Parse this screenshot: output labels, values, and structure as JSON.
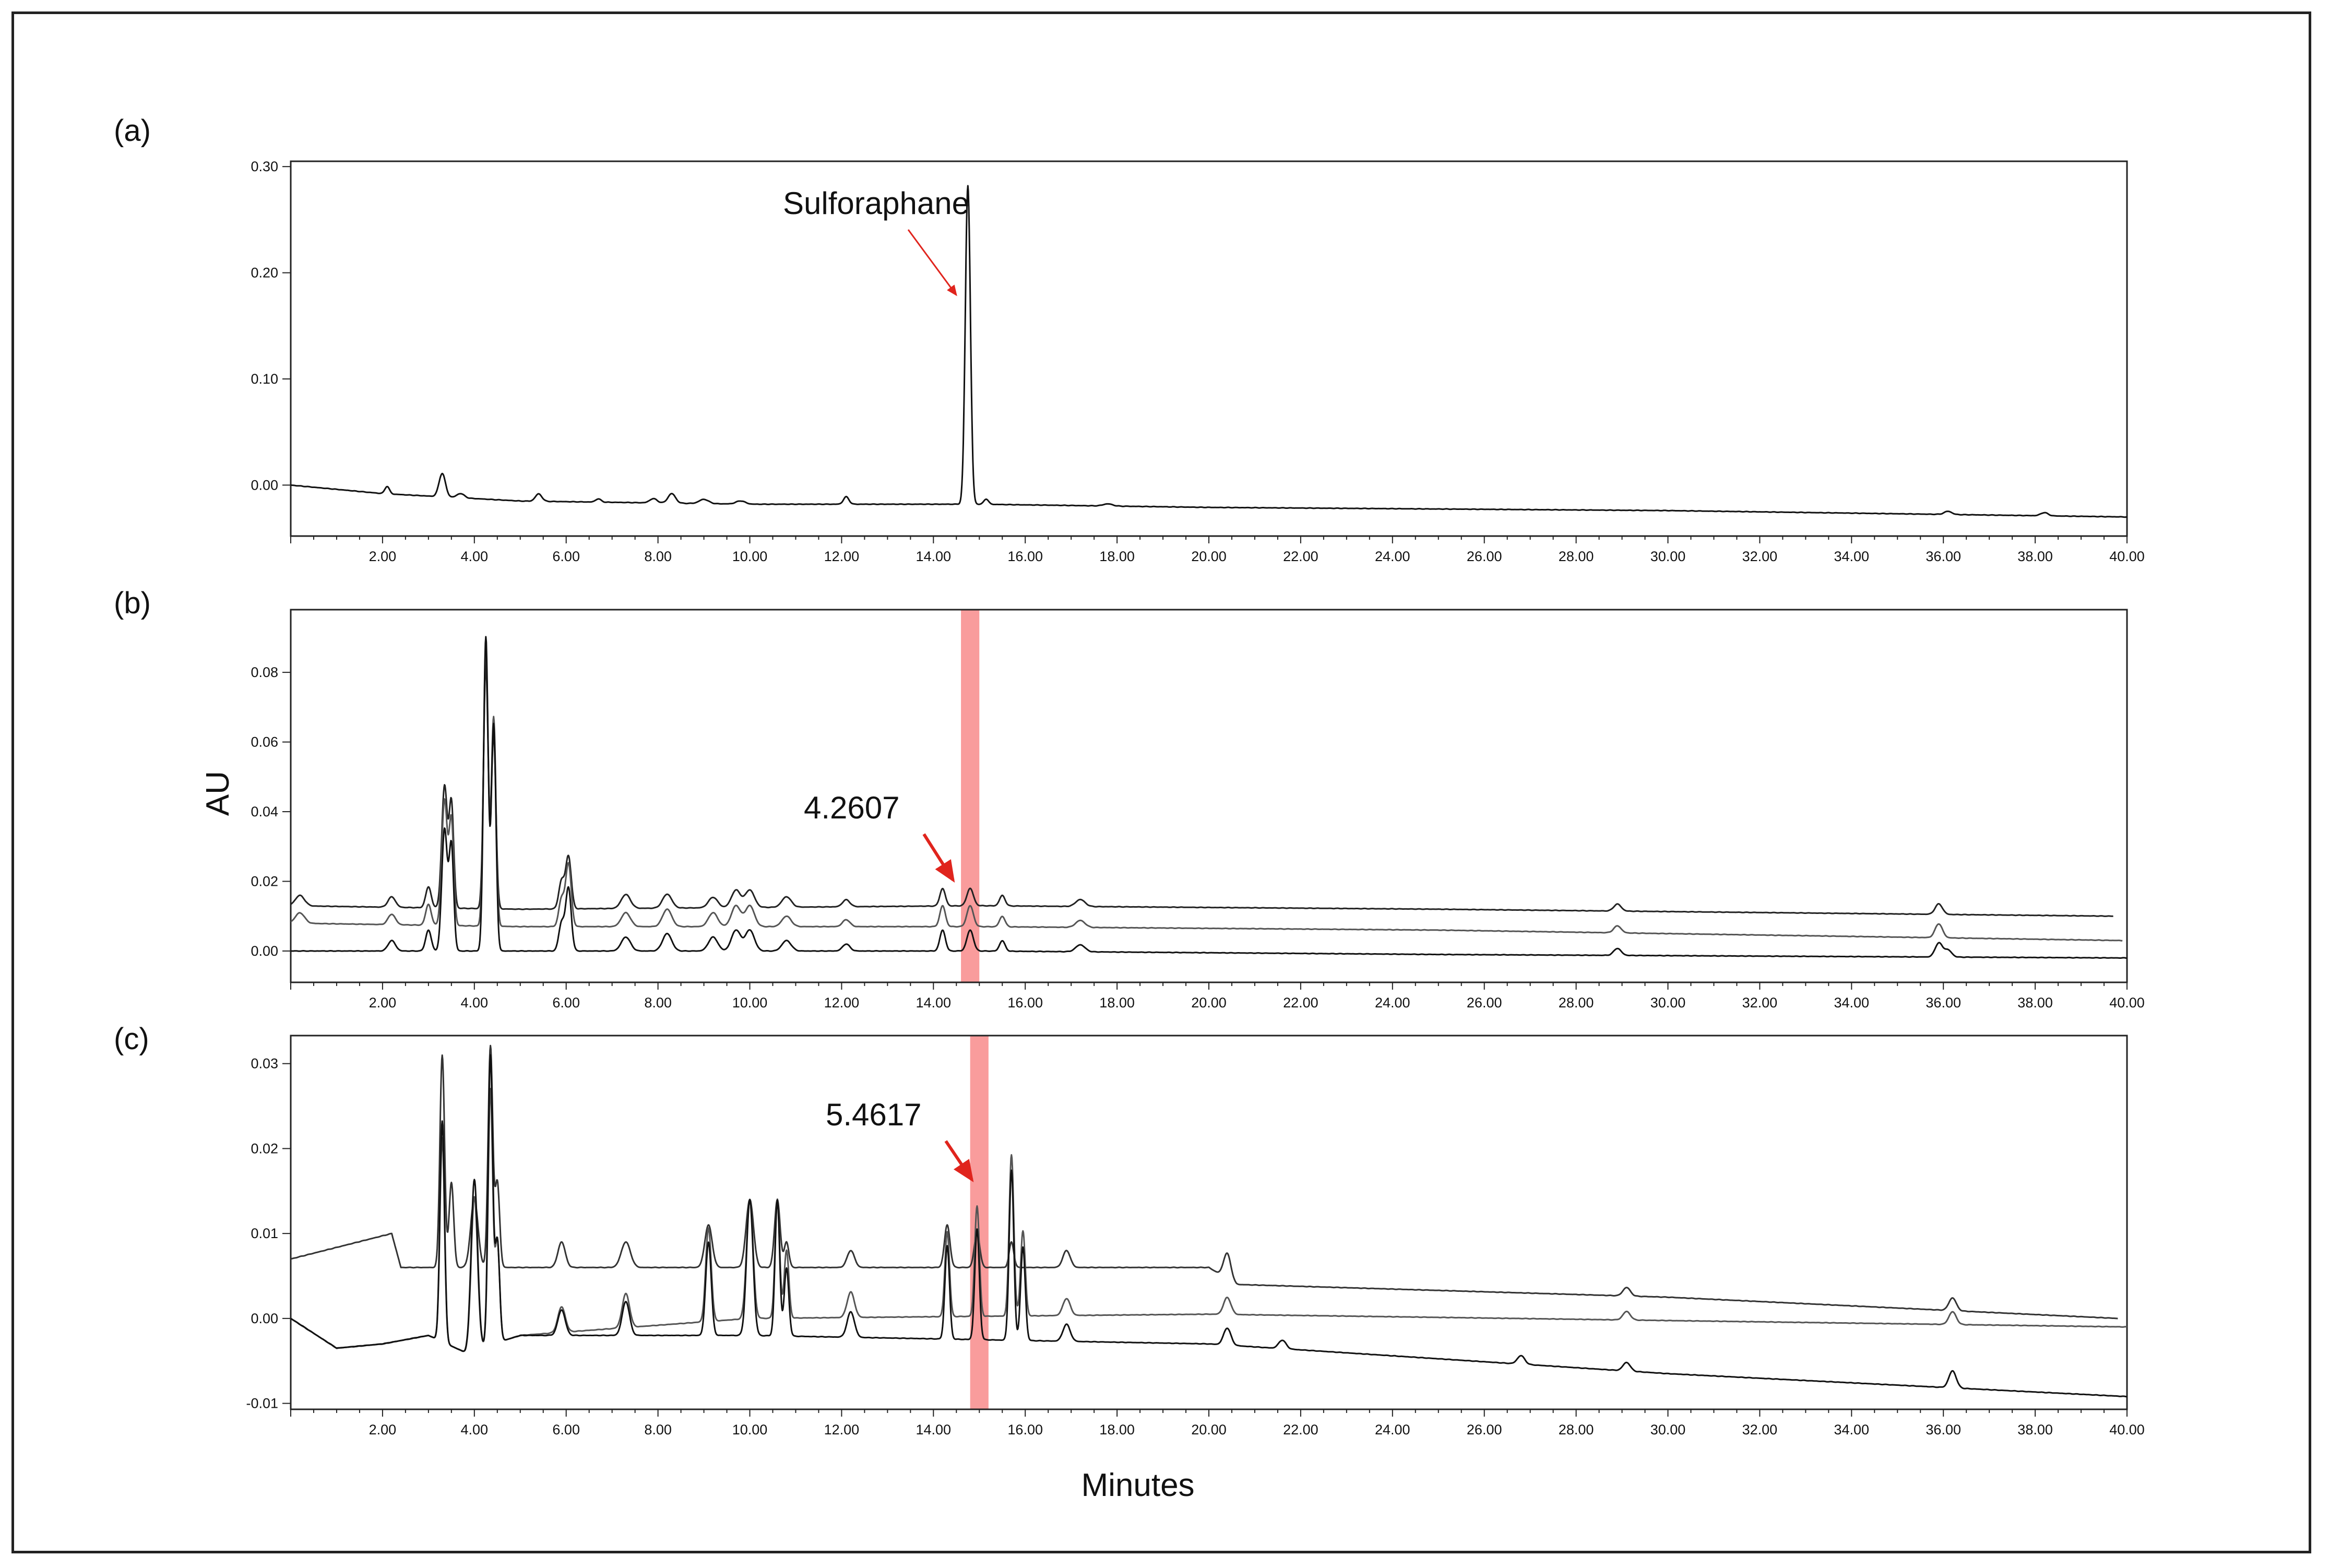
{
  "chart_data": [
    {
      "panel": "(a)",
      "type": "line",
      "xlim": [
        0,
        40
      ],
      "ylim": [
        -0.048,
        0.305
      ],
      "x_ticks": [
        "2.00",
        "4.00",
        "6.00",
        "8.00",
        "10.00",
        "12.00",
        "14.00",
        "16.00",
        "18.00",
        "20.00",
        "22.00",
        "24.00",
        "26.00",
        "28.00",
        "30.00",
        "32.00",
        "34.00",
        "36.00",
        "38.00",
        "40.00"
      ],
      "y_ticks": [
        0.0,
        0.1,
        0.2,
        0.3
      ],
      "y_tick_labels": [
        "0.00",
        "0.10",
        "0.20",
        "0.30"
      ],
      "annotation": {
        "text": "Sulforaphane",
        "x": 14.75,
        "y": 0.19
      },
      "highlight": null,
      "series": [
        {
          "baseline": [
            [
              0,
              0.0
            ],
            [
              2,
              -0.008
            ],
            [
              5,
              -0.015
            ],
            [
              10,
              -0.018
            ],
            [
              15,
              -0.018
            ],
            [
              20,
              -0.021
            ],
            [
              30,
              -0.024
            ],
            [
              40,
              -0.03
            ]
          ],
          "peaks": [
            [
              2.1,
              0.007,
              0.05
            ],
            [
              3.3,
              0.022,
              0.07
            ],
            [
              3.7,
              0.004,
              0.08
            ],
            [
              5.4,
              0.007,
              0.07
            ],
            [
              6.7,
              0.003,
              0.06
            ],
            [
              7.9,
              0.004,
              0.08
            ],
            [
              8.3,
              0.009,
              0.08
            ],
            [
              9.0,
              0.004,
              0.1
            ],
            [
              9.8,
              0.003,
              0.1
            ],
            [
              12.1,
              0.007,
              0.06
            ],
            [
              14.75,
              0.3,
              0.055
            ],
            [
              15.15,
              0.005,
              0.05
            ],
            [
              17.8,
              0.002,
              0.1
            ],
            [
              36.1,
              0.003,
              0.08
            ],
            [
              38.2,
              0.003,
              0.08
            ]
          ],
          "color": "#111111"
        }
      ]
    },
    {
      "panel": "(b)",
      "type": "line",
      "xlim": [
        0,
        40
      ],
      "ylim": [
        -0.009,
        0.098
      ],
      "x_ticks": [
        "2.00",
        "4.00",
        "6.00",
        "8.00",
        "10.00",
        "12.00",
        "14.00",
        "16.00",
        "18.00",
        "20.00",
        "22.00",
        "24.00",
        "26.00",
        "28.00",
        "30.00",
        "32.00",
        "34.00",
        "36.00",
        "38.00",
        "40.00"
      ],
      "y_ticks": [
        0.0,
        0.02,
        0.04,
        0.06,
        0.08
      ],
      "y_tick_labels": [
        "0.00",
        "0.02",
        "0.04",
        "0.06",
        "0.08"
      ],
      "ylabel": "AU",
      "annotation": {
        "text": "4.2607",
        "x": 14.9,
        "y": 0.018
      },
      "highlight": [
        14.6,
        15.0
      ],
      "series": [
        {
          "baseline": [
            [
              0,
              0.013
            ],
            [
              5,
              0.012
            ],
            [
              15,
              0.013
            ],
            [
              25,
              0.012
            ],
            [
              39.7,
              0.01
            ]
          ],
          "peaks": [
            [
              0.2,
              0.003,
              0.1
            ],
            [
              2.2,
              0.003,
              0.08
            ],
            [
              3.0,
              0.006,
              0.06
            ],
            [
              3.35,
              0.035,
              0.06
            ],
            [
              3.5,
              0.03,
              0.05
            ],
            [
              4.25,
              0.07,
              0.05
            ],
            [
              4.42,
              0.05,
              0.05
            ],
            [
              5.9,
              0.008,
              0.06
            ],
            [
              6.05,
              0.015,
              0.06
            ],
            [
              7.3,
              0.004,
              0.1
            ],
            [
              8.2,
              0.004,
              0.1
            ],
            [
              9.2,
              0.003,
              0.1
            ],
            [
              9.7,
              0.005,
              0.1
            ],
            [
              10.0,
              0.005,
              0.1
            ],
            [
              10.8,
              0.003,
              0.1
            ],
            [
              12.1,
              0.002,
              0.08
            ],
            [
              14.2,
              0.005,
              0.06
            ],
            [
              14.8,
              0.005,
              0.07
            ],
            [
              15.5,
              0.003,
              0.06
            ],
            [
              17.2,
              0.002,
              0.1
            ],
            [
              28.9,
              0.002,
              0.08
            ],
            [
              35.9,
              0.003,
              0.08
            ]
          ],
          "color": "#222222"
        },
        {
          "baseline": [
            [
              0,
              0.008
            ],
            [
              5,
              0.007
            ],
            [
              15,
              0.007
            ],
            [
              25,
              0.006
            ],
            [
              39.9,
              0.003
            ]
          ],
          "peaks": [
            [
              0.2,
              0.003,
              0.1
            ],
            [
              2.2,
              0.003,
              0.08
            ],
            [
              3.0,
              0.006,
              0.06
            ],
            [
              3.35,
              0.036,
              0.06
            ],
            [
              3.5,
              0.03,
              0.05
            ],
            [
              4.25,
              0.08,
              0.05
            ],
            [
              4.42,
              0.06,
              0.05
            ],
            [
              5.9,
              0.008,
              0.06
            ],
            [
              6.05,
              0.018,
              0.06
            ],
            [
              7.3,
              0.004,
              0.1
            ],
            [
              8.2,
              0.005,
              0.1
            ],
            [
              9.2,
              0.004,
              0.1
            ],
            [
              9.7,
              0.006,
              0.1
            ],
            [
              10.0,
              0.006,
              0.1
            ],
            [
              10.8,
              0.003,
              0.1
            ],
            [
              12.1,
              0.002,
              0.08
            ],
            [
              14.2,
              0.006,
              0.06
            ],
            [
              14.8,
              0.006,
              0.07
            ],
            [
              15.5,
              0.003,
              0.06
            ],
            [
              17.2,
              0.002,
              0.1
            ],
            [
              28.9,
              0.002,
              0.08
            ],
            [
              35.9,
              0.004,
              0.08
            ]
          ],
          "color": "#555555"
        },
        {
          "baseline": [
            [
              0,
              0.0
            ],
            [
              5,
              0.0
            ],
            [
              15,
              0.0
            ],
            [
              25,
              -0.001
            ],
            [
              40,
              -0.002
            ]
          ],
          "peaks": [
            [
              2.2,
              0.003,
              0.08
            ],
            [
              3.0,
              0.006,
              0.06
            ],
            [
              3.35,
              0.035,
              0.06
            ],
            [
              3.5,
              0.03,
              0.05
            ],
            [
              4.25,
              0.09,
              0.05
            ],
            [
              4.42,
              0.065,
              0.05
            ],
            [
              5.9,
              0.008,
              0.06
            ],
            [
              6.05,
              0.018,
              0.06
            ],
            [
              7.3,
              0.004,
              0.1
            ],
            [
              8.2,
              0.005,
              0.1
            ],
            [
              9.2,
              0.004,
              0.1
            ],
            [
              9.7,
              0.006,
              0.1
            ],
            [
              10.0,
              0.006,
              0.1
            ],
            [
              10.8,
              0.003,
              0.1
            ],
            [
              12.1,
              0.002,
              0.08
            ],
            [
              14.2,
              0.006,
              0.06
            ],
            [
              14.8,
              0.006,
              0.07
            ],
            [
              15.5,
              0.003,
              0.06
            ],
            [
              17.2,
              0.002,
              0.1
            ],
            [
              28.9,
              0.002,
              0.08
            ],
            [
              35.9,
              0.004,
              0.08
            ],
            [
              36.1,
              0.002,
              0.08
            ]
          ],
          "color": "#111111"
        }
      ]
    },
    {
      "panel": "(c)",
      "type": "line",
      "xlim": [
        0,
        40
      ],
      "ylim": [
        -0.0107,
        0.0333
      ],
      "x_ticks": [
        "2.00",
        "4.00",
        "6.00",
        "8.00",
        "10.00",
        "12.00",
        "14.00",
        "16.00",
        "18.00",
        "20.00",
        "22.00",
        "24.00",
        "26.00",
        "28.00",
        "30.00",
        "32.00",
        "34.00",
        "36.00",
        "38.00",
        "40.00"
      ],
      "y_ticks": [
        -0.01,
        0.0,
        0.01,
        0.02,
        0.03
      ],
      "y_tick_labels": [
        "-0.01",
        "0.00",
        "0.01",
        "0.02",
        "0.03"
      ],
      "annotation": {
        "text": "5.4617",
        "x": 14.95,
        "y": 0.016
      },
      "highlight": [
        14.8,
        15.2
      ],
      "series": [
        {
          "baseline": [
            [
              0,
              0.007
            ],
            [
              2.2,
              0.01
            ],
            [
              2.4,
              0.006
            ],
            [
              10,
              0.006
            ],
            [
              20,
              0.006
            ],
            [
              20.6,
              0.004
            ],
            [
              30,
              0.0025
            ],
            [
              39.8,
              0.0
            ]
          ],
          "peaks": [
            [
              3.3,
              0.025,
              0.05
            ],
            [
              3.5,
              0.01,
              0.05
            ],
            [
              4.0,
              0.008,
              0.08
            ],
            [
              4.35,
              0.026,
              0.05
            ],
            [
              4.5,
              0.01,
              0.05
            ],
            [
              5.9,
              0.003,
              0.08
            ],
            [
              7.3,
              0.003,
              0.1
            ],
            [
              9.1,
              0.005,
              0.08
            ],
            [
              10.0,
              0.008,
              0.08
            ],
            [
              10.6,
              0.008,
              0.06
            ],
            [
              10.8,
              0.003,
              0.05
            ],
            [
              12.2,
              0.002,
              0.08
            ],
            [
              14.3,
              0.005,
              0.06
            ],
            [
              14.95,
              0.004,
              0.06
            ],
            [
              15.7,
              0.003,
              0.05
            ],
            [
              16.9,
              0.002,
              0.08
            ],
            [
              20.4,
              0.003,
              0.08
            ],
            [
              29.1,
              0.001,
              0.08
            ],
            [
              36.2,
              0.0015,
              0.08
            ]
          ],
          "color": "#333333"
        },
        {
          "baseline": [
            [
              0,
              0.0
            ],
            [
              1,
              -0.0035
            ],
            [
              2,
              -0.003
            ],
            [
              3,
              -0.002
            ],
            [
              3.8,
              -0.004
            ],
            [
              5,
              -0.002
            ],
            [
              10,
              0.0
            ],
            [
              20,
              0.0005
            ],
            [
              40,
              -0.001
            ]
          ],
          "peaks": [
            [
              3.3,
              0.024,
              0.05
            ],
            [
              4.0,
              0.018,
              0.07
            ],
            [
              4.35,
              0.03,
              0.05
            ],
            [
              4.5,
              0.012,
              0.05
            ],
            [
              5.9,
              0.003,
              0.08
            ],
            [
              7.3,
              0.004,
              0.08
            ],
            [
              9.1,
              0.011,
              0.06
            ],
            [
              10.0,
              0.014,
              0.07
            ],
            [
              10.6,
              0.014,
              0.05
            ],
            [
              10.8,
              0.008,
              0.05
            ],
            [
              12.2,
              0.003,
              0.08
            ],
            [
              14.3,
              0.01,
              0.05
            ],
            [
              14.95,
              0.013,
              0.05
            ],
            [
              15.7,
              0.019,
              0.05
            ],
            [
              15.95,
              0.01,
              0.05
            ],
            [
              16.9,
              0.002,
              0.08
            ],
            [
              20.4,
              0.002,
              0.08
            ],
            [
              29.1,
              0.001,
              0.08
            ],
            [
              36.2,
              0.0015,
              0.08
            ]
          ],
          "color": "#555555"
        },
        {
          "baseline": [
            [
              0,
              0.0
            ],
            [
              1,
              -0.0035
            ],
            [
              2,
              -0.003
            ],
            [
              3,
              -0.002
            ],
            [
              3.8,
              -0.004
            ],
            [
              5,
              -0.002
            ],
            [
              10,
              -0.002
            ],
            [
              20,
              -0.003
            ],
            [
              30,
              -0.0065
            ],
            [
              40,
              -0.0092
            ]
          ],
          "peaks": [
            [
              3.3,
              0.026,
              0.05
            ],
            [
              4.0,
              0.02,
              0.07
            ],
            [
              4.35,
              0.034,
              0.05
            ],
            [
              4.5,
              0.012,
              0.05
            ],
            [
              5.9,
              0.003,
              0.08
            ],
            [
              7.3,
              0.004,
              0.08
            ],
            [
              9.1,
              0.011,
              0.06
            ],
            [
              10.0,
              0.016,
              0.07
            ],
            [
              10.6,
              0.016,
              0.05
            ],
            [
              10.8,
              0.008,
              0.05
            ],
            [
              12.2,
              0.003,
              0.08
            ],
            [
              14.3,
              0.011,
              0.05
            ],
            [
              14.95,
              0.013,
              0.05
            ],
            [
              15.7,
              0.02,
              0.05
            ],
            [
              15.95,
              0.011,
              0.05
            ],
            [
              16.9,
              0.002,
              0.08
            ],
            [
              20.4,
              0.002,
              0.08
            ],
            [
              21.6,
              0.001,
              0.08
            ],
            [
              26.8,
              0.001,
              0.08
            ],
            [
              29.1,
              0.001,
              0.08
            ],
            [
              36.2,
              0.002,
              0.08
            ]
          ],
          "color": "#111111"
        }
      ]
    }
  ],
  "xlabel": "Minutes",
  "colors": {
    "highlight": "#f77b7b",
    "arrow": "#e0241d",
    "trace": "#111111"
  }
}
